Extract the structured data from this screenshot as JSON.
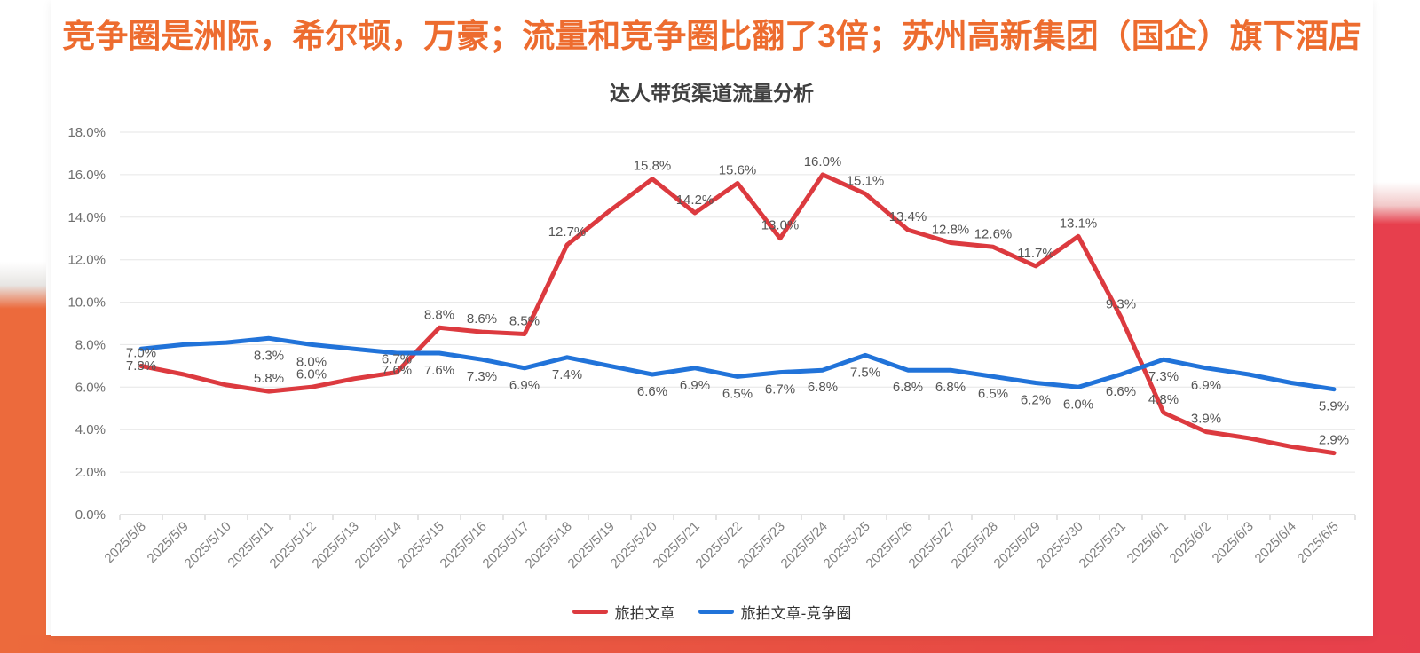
{
  "page": {
    "main_title": "竞争圈是洲际，希尔顿，万豪；流量和竞争圈比翻了3倍；苏州高新集团（国企）旗下酒店",
    "main_title_color": "#ed6c2f",
    "background_bands": {
      "left_band_color": "#ec6a3c",
      "right_band_color": "#e73f4d",
      "bottom_band_gradient": [
        "#ec6a3c",
        "#e73f4d"
      ]
    }
  },
  "chart_data": {
    "type": "line",
    "title": "达人带货渠道流量分析",
    "x": [
      "2025/5/8",
      "2025/5/9",
      "2025/5/10",
      "2025/5/11",
      "2025/5/12",
      "2025/5/13",
      "2025/5/14",
      "2025/5/15",
      "2025/5/16",
      "2025/5/17",
      "2025/5/18",
      "2025/5/19",
      "2025/5/20",
      "2025/5/21",
      "2025/5/22",
      "2025/5/23",
      "2025/5/24",
      "2025/5/25",
      "2025/5/26",
      "2025/5/27",
      "2025/5/28",
      "2025/5/29",
      "2025/5/30",
      "2025/5/31",
      "2025/6/1",
      "2025/6/2",
      "2025/6/3",
      "2025/6/4",
      "2025/6/5"
    ],
    "y_axis": {
      "min": 0,
      "max": 18,
      "tick_step": 2,
      "unit": "%",
      "label_format": "one_decimal_percent"
    },
    "grid": true,
    "legend_position": "bottom-center",
    "series": [
      {
        "name": "旅拍文章",
        "color": "#dc3a3f",
        "label_position": "above",
        "values": [
          7.0,
          6.6,
          6.1,
          5.8,
          6.0,
          6.4,
          6.7,
          8.8,
          8.6,
          8.5,
          12.7,
          14.3,
          15.8,
          14.2,
          15.6,
          13.0,
          16.0,
          15.1,
          13.4,
          12.8,
          12.6,
          11.7,
          13.1,
          9.3,
          4.8,
          3.9,
          3.6,
          3.2,
          2.9
        ],
        "labels_shown": [
          true,
          false,
          false,
          true,
          true,
          false,
          true,
          true,
          true,
          true,
          true,
          false,
          true,
          true,
          true,
          true,
          true,
          true,
          true,
          true,
          true,
          true,
          true,
          true,
          true,
          true,
          false,
          false,
          true
        ]
      },
      {
        "name": "旅拍文章-竞争圈",
        "color": "#2173d9",
        "label_position": "below",
        "values": [
          7.8,
          8.0,
          8.1,
          8.3,
          8.0,
          7.8,
          7.6,
          7.6,
          7.3,
          6.9,
          7.4,
          7.0,
          6.6,
          6.9,
          6.5,
          6.7,
          6.8,
          7.5,
          6.8,
          6.8,
          6.5,
          6.2,
          6.0,
          6.6,
          7.3,
          6.9,
          6.6,
          6.2,
          5.9
        ],
        "labels_shown": [
          true,
          false,
          false,
          true,
          true,
          false,
          true,
          true,
          true,
          true,
          true,
          false,
          true,
          true,
          true,
          true,
          true,
          true,
          true,
          true,
          true,
          true,
          true,
          true,
          true,
          true,
          false,
          false,
          true
        ]
      }
    ]
  }
}
